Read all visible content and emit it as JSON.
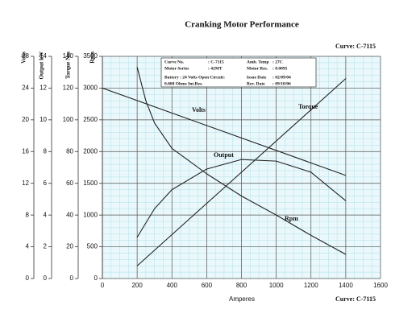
{
  "chart_data": {
    "type": "line",
    "title": "Cranking Motor Performance",
    "curve_label_top": "Curve: C-7115",
    "curve_label_bottom": "Curve: C-7115",
    "xlabel": "Amperes",
    "xlim": [
      0,
      1600
    ],
    "xticks": [
      0,
      200,
      400,
      600,
      800,
      1000,
      1200,
      1400,
      1600
    ],
    "grid": true,
    "axes": [
      {
        "title": "Volts",
        "ylim": [
          0,
          28
        ],
        "yticks": [
          0,
          4,
          8,
          12,
          16,
          20,
          24,
          28
        ]
      },
      {
        "title": "Output kW",
        "ylim": [
          0,
          14
        ],
        "yticks": [
          0,
          2,
          4,
          6,
          8,
          10,
          12,
          14
        ]
      },
      {
        "title": "Torque Nm",
        "ylim": [
          0,
          140
        ],
        "yticks": [
          0,
          20,
          40,
          60,
          80,
          100,
          120,
          140
        ]
      },
      {
        "title": "Rpm",
        "ylim": [
          0,
          3500
        ],
        "yticks": [
          0,
          500,
          1000,
          1500,
          2000,
          2500,
          3000,
          3500
        ]
      }
    ],
    "series": [
      {
        "name": "Volts",
        "axis": 0,
        "color": "#222222",
        "x": [
          0,
          1400
        ],
        "values": [
          24,
          13
        ]
      },
      {
        "name": "Output",
        "axis": 1,
        "color": "#222222",
        "x": [
          200,
          300,
          400,
          600,
          800,
          1000,
          1200,
          1400
        ],
        "values": [
          2.6,
          4.4,
          5.6,
          6.9,
          7.5,
          7.4,
          6.7,
          4.9
        ]
      },
      {
        "name": "Torque",
        "axis": 2,
        "color": "#222222",
        "x": [
          200,
          1400
        ],
        "values": [
          8,
          126
        ]
      },
      {
        "name": "Rpm",
        "axis": 3,
        "color": "#222222",
        "x": [
          200,
          250,
          300,
          400,
          500,
          600,
          800,
          1000,
          1200,
          1400
        ],
        "values": [
          3330,
          2800,
          2450,
          2050,
          1850,
          1650,
          1300,
          1000,
          680,
          380
        ]
      }
    ],
    "info_box": [
      [
        "Curve No.",
        ": C-7115",
        "Amb. Temp",
        ": 27C"
      ],
      [
        "Motor Series",
        ": 42MT",
        "Motor Res.",
        ": 0.0095"
      ],
      [
        "Battery : 24 Volts Open Circuit:",
        "",
        "Issue Date",
        ": 02/09/04"
      ],
      [
        "0.008 Ohms Int.Res.",
        "",
        "Rev. Date",
        ": 09/10/06"
      ]
    ]
  }
}
